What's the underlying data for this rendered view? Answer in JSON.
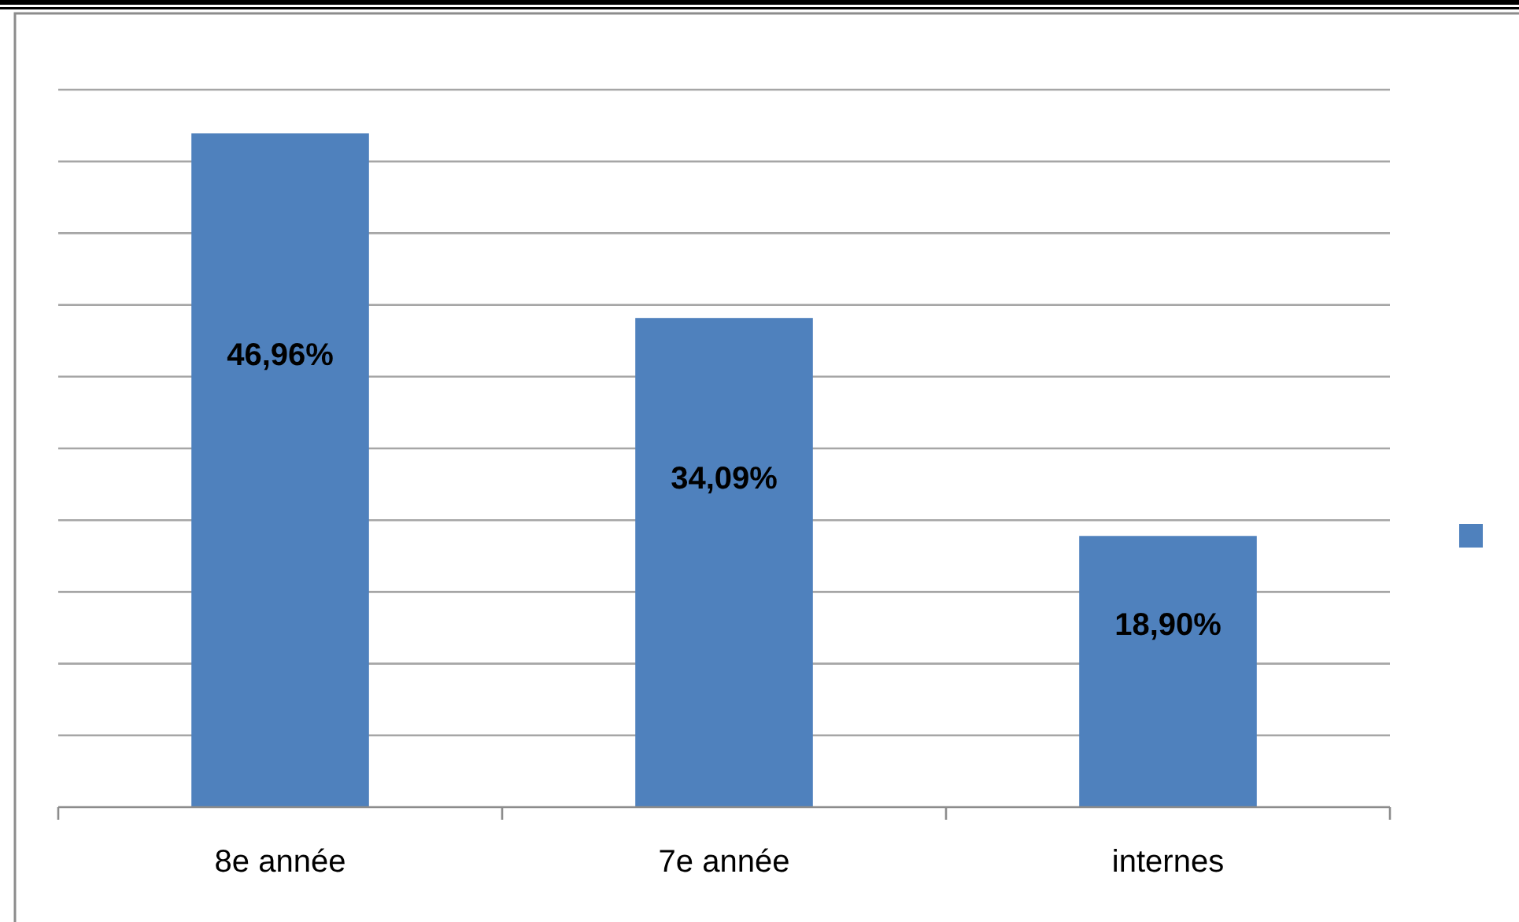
{
  "chart_data": {
    "type": "bar",
    "categories": [
      "8e année",
      "7e année",
      "internes"
    ],
    "series": [
      {
        "color": "#4f81bd",
        "values": [
          46.96,
          34.09,
          18.9
        ],
        "value_labels": [
          "46,96%",
          "34,09%",
          "18,90%"
        ]
      }
    ],
    "ylim": [
      0,
      50
    ],
    "yticks": [
      {
        "value": 0,
        "label": null
      },
      {
        "value": 5,
        "label": null
      },
      {
        "value": 10,
        "label": null
      },
      {
        "value": 15,
        "label": null
      },
      {
        "value": 20,
        "label": null
      },
      {
        "value": 25,
        "label": null
      },
      {
        "value": 30,
        "label": null
      },
      {
        "value": 35,
        "label": null
      },
      {
        "value": 40,
        "label": null
      },
      {
        "value": 45,
        "label": null
      },
      {
        "value": 50,
        "label": null
      }
    ],
    "grid": "y",
    "tick_labels": "x"
  }
}
